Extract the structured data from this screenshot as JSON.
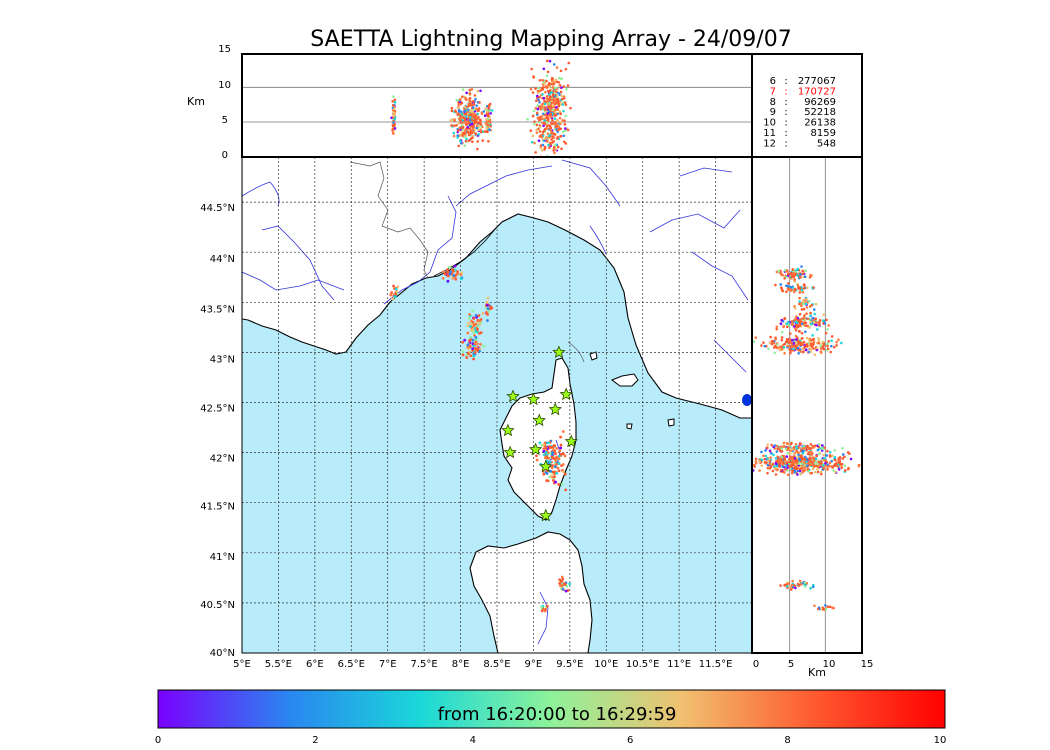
{
  "title": "SAETTA Lightning Mapping Array - 24/09/07",
  "colors": {
    "sea": "#b8ecfa",
    "land": "#ffffff",
    "river": "#3333dd",
    "border": "#555555",
    "grid": "#333333",
    "highlight_count": "#ff0000"
  },
  "chart_data": {
    "type": "scatter",
    "map": {
      "lon_ticks": [
        "5°E",
        "5.5°E",
        "6°E",
        "6.5°E",
        "7°E",
        "7.5°E",
        "8°E",
        "8.5°E",
        "9°E",
        "9.5°E",
        "10°E",
        "10.5°E",
        "11°E",
        "11.5°E"
      ],
      "lat_ticks": [
        "40°N",
        "40.5°N",
        "41°N",
        "41.5°N",
        "42°N",
        "42.5°N",
        "43°N",
        "43.5°N",
        "44°N",
        "44.5°N"
      ],
      "lon_range": [
        5,
        12
      ],
      "lat_range": [
        40,
        44.95
      ],
      "station_markers": [
        {
          "lon": 9.35,
          "lat": 43.0
        },
        {
          "lon": 8.72,
          "lat": 42.56
        },
        {
          "lon": 9.0,
          "lat": 42.53
        },
        {
          "lon": 9.45,
          "lat": 42.58
        },
        {
          "lon": 9.3,
          "lat": 42.43
        },
        {
          "lon": 9.08,
          "lat": 42.32
        },
        {
          "lon": 8.65,
          "lat": 42.22
        },
        {
          "lon": 9.52,
          "lat": 42.11
        },
        {
          "lon": 8.68,
          "lat": 42.0
        },
        {
          "lon": 9.03,
          "lat": 42.03
        },
        {
          "lon": 9.17,
          "lat": 41.86
        },
        {
          "lon": 9.17,
          "lat": 41.37
        }
      ],
      "lightning_clusters": [
        {
          "lon": 7.9,
          "lat": 43.78,
          "n": 40,
          "sx": 0.06,
          "sy": 0.04
        },
        {
          "lon": 7.1,
          "lat": 43.6,
          "n": 18,
          "sx": 0.03,
          "sy": 0.03
        },
        {
          "lon": 8.37,
          "lat": 43.45,
          "n": 20,
          "sx": 0.02,
          "sy": 0.05
        },
        {
          "lon": 8.2,
          "lat": 43.28,
          "n": 45,
          "sx": 0.06,
          "sy": 0.06
        },
        {
          "lon": 8.15,
          "lat": 43.05,
          "n": 55,
          "sx": 0.07,
          "sy": 0.06
        },
        {
          "lon": 9.27,
          "lat": 41.9,
          "n": 130,
          "sx": 0.08,
          "sy": 0.12
        },
        {
          "lon": 9.17,
          "lat": 42.05,
          "n": 20,
          "sx": 0.04,
          "sy": 0.03
        },
        {
          "lon": 9.4,
          "lat": 40.67,
          "n": 25,
          "sx": 0.04,
          "sy": 0.04
        },
        {
          "lon": 9.15,
          "lat": 40.45,
          "n": 8,
          "sx": 0.03,
          "sy": 0.02
        }
      ]
    },
    "altitude_lon": {
      "ylabel": "Km",
      "yticks": [
        "0",
        "5",
        "10",
        "15"
      ],
      "ylim": [
        0,
        15
      ],
      "clusters": [
        {
          "lon": 7.08,
          "alt": 5.7,
          "n": 50,
          "sx": 0.01,
          "sy": 1.6
        },
        {
          "lon": 8.1,
          "alt": 5.7,
          "n": 320,
          "sx": 0.1,
          "sy": 1.8
        },
        {
          "lon": 8.38,
          "alt": 5.6,
          "n": 60,
          "sx": 0.02,
          "sy": 1.2
        },
        {
          "lon": 9.23,
          "alt": 6.5,
          "n": 420,
          "sx": 0.1,
          "sy": 2.8
        }
      ]
    },
    "altitude_lat": {
      "xlabel": "Km",
      "xticks": [
        "0",
        "5",
        "10",
        "15"
      ],
      "xlim": [
        0,
        15
      ],
      "clusters": [
        {
          "lat": 43.78,
          "alt": 5.8,
          "n": 80,
          "sx": 1.0,
          "sy": 0.03
        },
        {
          "lat": 43.64,
          "alt": 6.0,
          "n": 50,
          "sx": 1.0,
          "sy": 0.02
        },
        {
          "lat": 43.48,
          "alt": 7.0,
          "n": 30,
          "sx": 0.8,
          "sy": 0.03
        },
        {
          "lat": 43.3,
          "alt": 7.0,
          "n": 130,
          "sx": 1.8,
          "sy": 0.04
        },
        {
          "lat": 43.08,
          "alt": 6.5,
          "n": 200,
          "sx": 2.2,
          "sy": 0.04
        },
        {
          "lat": 42.05,
          "alt": 6.0,
          "n": 120,
          "sx": 1.8,
          "sy": 0.02
        },
        {
          "lat": 41.9,
          "alt": 6.5,
          "n": 480,
          "sx": 3.0,
          "sy": 0.05
        },
        {
          "lat": 40.68,
          "alt": 6.3,
          "n": 45,
          "sx": 1.2,
          "sy": 0.02
        },
        {
          "lat": 40.45,
          "alt": 9.8,
          "n": 18,
          "sx": 0.6,
          "sy": 0.01
        }
      ]
    },
    "station_counts": [
      {
        "stations": "6",
        "count": "277067",
        "highlight": false
      },
      {
        "stations": "7",
        "count": "170727",
        "highlight": true
      },
      {
        "stations": "8",
        "count": "96269",
        "highlight": false
      },
      {
        "stations": "9",
        "count": "52218",
        "highlight": false
      },
      {
        "stations": "10",
        "count": "26138",
        "highlight": false
      },
      {
        "stations": "11",
        "count": "8159",
        "highlight": false
      },
      {
        "stations": "12",
        "count": "548",
        "highlight": false
      }
    ],
    "colorbar": {
      "label": "from 16:20:00 to 16:29:59",
      "ticks": [
        "0",
        "2",
        "4",
        "6",
        "8",
        "10"
      ],
      "range": [
        0,
        10
      ],
      "stops": [
        "#7a00ff",
        "#2a86f0",
        "#1ad8d8",
        "#8ef29a",
        "#f0c070",
        "#ff5a30",
        "#ff0000"
      ]
    }
  }
}
